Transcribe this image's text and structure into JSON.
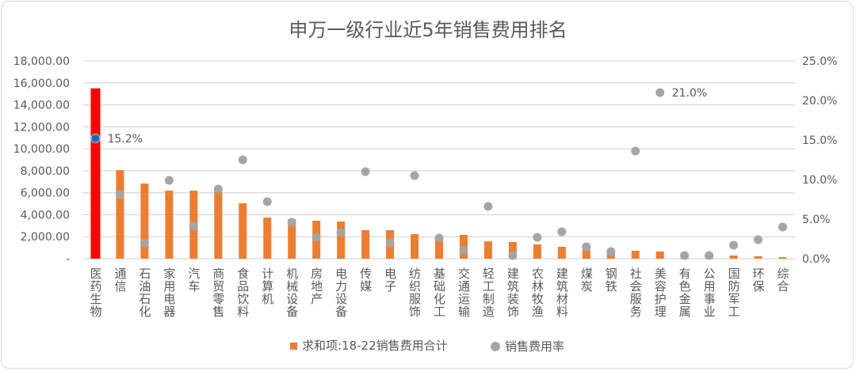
{
  "chart_data": {
    "type": "bar+scatter",
    "title": "申万一级行业近5年销售费用排名",
    "categories": [
      "医药生物",
      "通信",
      "石油石化",
      "家用电器",
      "汽车",
      "商贸零售",
      "食品饮料",
      "计算机",
      "机械设备",
      "房地产",
      "电力设备",
      "传媒",
      "电子",
      "纺织服饰",
      "基础化工",
      "交通运输",
      "轻工制造",
      "建筑装饰",
      "农林牧渔",
      "建筑材料",
      "煤炭",
      "钢铁",
      "社会服务",
      "美容护理",
      "有色金属",
      "公用事业",
      "国防军工",
      "环保",
      "综合"
    ],
    "series": [
      {
        "name": "求和项:18-22销售费用合计",
        "type": "bar",
        "axis": "left",
        "color": "#ed7d31",
        "highlight_color": "#ff0000",
        "highlight_index": 0,
        "values": [
          15500,
          8060,
          6840,
          6190,
          6190,
          6190,
          5040,
          3740,
          3600,
          3460,
          3380,
          2590,
          2590,
          2230,
          2000,
          2160,
          1580,
          1510,
          1300,
          1080,
          860,
          720,
          720,
          650,
          360,
          360,
          290,
          220,
          140
        ]
      },
      {
        "name": "销售费用率",
        "type": "scatter",
        "axis": "right",
        "color": "#a5a5a5",
        "highlight_color": "#0070c0",
        "values": [
          15.2,
          8.1,
          2.0,
          9.9,
          4.1,
          8.8,
          12.5,
          7.2,
          4.6,
          2.7,
          3.3,
          11.0,
          2.0,
          10.5,
          2.6,
          1.1,
          6.6,
          0.4,
          2.7,
          3.4,
          1.5,
          0.9,
          13.6,
          21.0,
          0.4,
          0.4,
          1.7,
          2.4,
          4.0
        ]
      }
    ],
    "data_labels": [
      {
        "index": 0,
        "text": "15.2%"
      },
      {
        "index": 23,
        "text": "21.0%"
      }
    ],
    "y_left": {
      "ylim": [
        0,
        18000
      ],
      "ticks": [
        "-",
        "2,000.00",
        "4,000.00",
        "6,000.00",
        "8,000.00",
        "10,000.00",
        "12,000.00",
        "14,000.00",
        "16,000.00",
        "18,000.00"
      ]
    },
    "y_right": {
      "ylim": [
        0,
        25
      ],
      "ticks": [
        "0.0%",
        "5.0%",
        "10.0%",
        "15.0%",
        "20.0%",
        "25.0%"
      ]
    },
    "grid": true,
    "legend": "bottom"
  }
}
